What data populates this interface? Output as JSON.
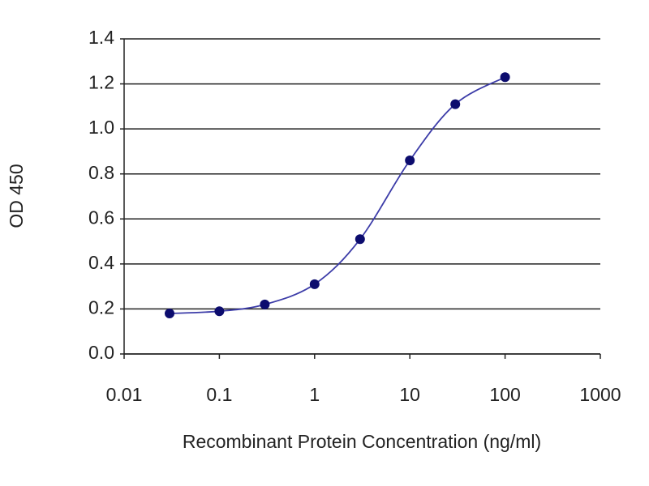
{
  "chart_data": {
    "type": "scatter",
    "x_label": "Recombinant Protein Concentration (ng/ml)",
    "y_label": "OD 450",
    "x": [
      0.03,
      0.1,
      0.3,
      1,
      3,
      10,
      30,
      100
    ],
    "values": [
      0.18,
      0.19,
      0.22,
      0.31,
      0.51,
      0.86,
      1.11,
      1.23
    ],
    "marker_color": "#0c0c6e",
    "line_color": "#3c3ca8",
    "xscale": "log",
    "xlim": [
      0.01,
      1000
    ],
    "xticks": [
      0.01,
      0.1,
      1,
      10,
      100,
      1000
    ],
    "ylim": [
      0,
      1.4
    ],
    "yticks": [
      {
        "value": 0,
        "label": "0.0"
      },
      0.2,
      0.4,
      0.6,
      0.8,
      {
        "value": 1,
        "label": "1.0"
      },
      1.2,
      1.4
    ],
    "grid": true
  }
}
